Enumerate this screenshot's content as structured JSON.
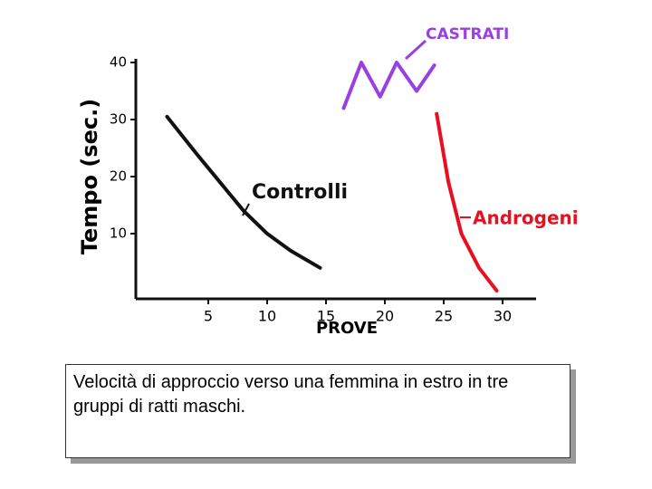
{
  "chart_data": {
    "type": "line",
    "x_label": "PROVE",
    "y_label": "Tempo (sec.)",
    "xlim": [
      0,
      32
    ],
    "ylim": [
      0,
      40
    ],
    "xticks": [
      5,
      10,
      15,
      20,
      25,
      30
    ],
    "yticks": [
      10,
      20,
      30,
      40
    ],
    "series": [
      {
        "name": "Controlli",
        "color": "#111111",
        "x": [
          1.5,
          4,
          6,
          8,
          10,
          12,
          14.5
        ],
        "values": [
          30.5,
          24,
          19,
          14,
          10,
          7,
          4
        ]
      },
      {
        "name": "CASTRATI",
        "color": "#9b40e0",
        "x": [
          16.5,
          18,
          19.6,
          21,
          22.7,
          24.2
        ],
        "values": [
          32,
          40,
          34,
          40,
          35,
          39.5
        ]
      },
      {
        "name": "Androgeni",
        "color": "#e81020",
        "x": [
          24.4,
          25.4,
          26.5,
          28,
          29.5
        ],
        "values": [
          31,
          19,
          10,
          4,
          0
        ]
      }
    ]
  },
  "caption": "Velocità di approccio verso una femmina in estro in tre gruppi di ratti maschi."
}
